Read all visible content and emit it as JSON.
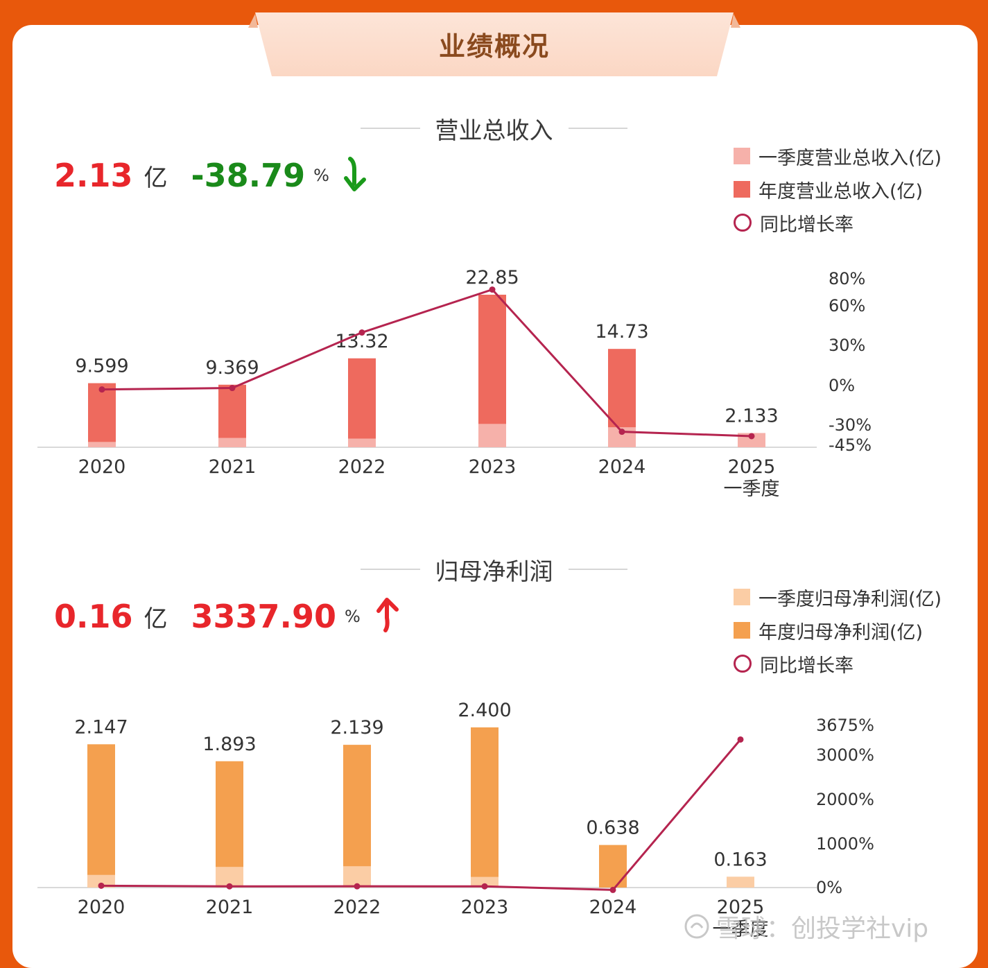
{
  "header": {
    "title": "业绩概况"
  },
  "revenue": {
    "section_title": "营业总收入",
    "summary_value": "2.13",
    "summary_unit": "亿",
    "summary_change": "-38.79",
    "summary_change_unit": "%",
    "change_direction": "down",
    "value_color": "#e8262b",
    "change_color": "#1a8a1a",
    "legend": [
      {
        "label": "一季度营业总收入(亿)",
        "color": "#f6b1aa"
      },
      {
        "label": "年度营业总收入(亿)",
        "color": "#ee6a5e"
      },
      {
        "label": "同比增长率",
        "color": "#b5244f"
      }
    ]
  },
  "profit": {
    "section_title": "归母净利润",
    "summary_value": "0.16",
    "summary_unit": "亿",
    "summary_change": "3337.90",
    "summary_change_unit": "%",
    "change_direction": "up",
    "value_color": "#e8262b",
    "change_color": "#e8262b",
    "legend": [
      {
        "label": "一季度归母净利润(亿)",
        "color": "#fbcda5"
      },
      {
        "label": "年度归母净利润(亿)",
        "color": "#f4a04f"
      },
      {
        "label": "同比增长率",
        "color": "#b5244f"
      }
    ]
  },
  "watermark": {
    "text": "雪球：创投学社vip"
  },
  "chart_data": [
    {
      "type": "bar",
      "title": "营业总收入",
      "categories": [
        "2020",
        "2021",
        "2022",
        "2023",
        "2024",
        "2025|一季度"
      ],
      "series": [
        {
          "name": "年度营业总收入(亿)",
          "values": [
            9.599,
            9.369,
            13.32,
            22.85,
            14.73,
            null
          ],
          "color": "#ee6a5e"
        },
        {
          "name": "一季度营业总收入(亿)",
          "values": [
            0.8,
            1.4,
            1.3,
            3.5,
            3.0,
            2.133
          ],
          "color": "#f6b1aa"
        },
        {
          "name": "同比增长率",
          "type": "line",
          "axis": "right",
          "values": [
            -3.5,
            -2.4,
            39.2,
            71.5,
            -35.5,
            -38.79
          ],
          "color": "#b5244f"
        }
      ],
      "data_labels": [
        "9.599",
        "9.369",
        "13.32",
        "22.85",
        "14.73",
        "2.133"
      ],
      "right_axis": {
        "ticks": [
          "80%",
          "60%",
          "30%",
          "0%",
          "-30%",
          "-45%"
        ],
        "tick_values": [
          80,
          60,
          30,
          0,
          -30,
          -45
        ]
      },
      "legend_position": "top-right",
      "grid": false
    },
    {
      "type": "bar",
      "title": "归母净利润",
      "categories": [
        "2020",
        "2021",
        "2022",
        "2023",
        "2024",
        "2025|一季度"
      ],
      "series": [
        {
          "name": "年度归母净利润(亿)",
          "values": [
            2.147,
            1.893,
            2.139,
            2.4,
            0.638,
            null
          ],
          "color": "#f4a04f"
        },
        {
          "name": "一季度归母净利润(亿)",
          "values": [
            0.19,
            0.31,
            0.32,
            0.16,
            null,
            0.163
          ],
          "color": "#fbcda5"
        },
        {
          "name": "同比增长率",
          "type": "line",
          "axis": "right",
          "values": [
            26,
            12,
            13,
            12,
            -73.4,
            3337.9
          ],
          "color": "#b5244f"
        }
      ],
      "data_labels": [
        "2.147",
        "1.893",
        "2.139",
        "2.400",
        "0.638",
        "0.163"
      ],
      "right_axis": {
        "ticks": [
          "3675%",
          "3000%",
          "2000%",
          "1000%",
          "0%"
        ],
        "tick_values": [
          3675,
          3000,
          2000,
          1000,
          0
        ]
      },
      "legend_position": "top-right",
      "grid": false
    }
  ]
}
